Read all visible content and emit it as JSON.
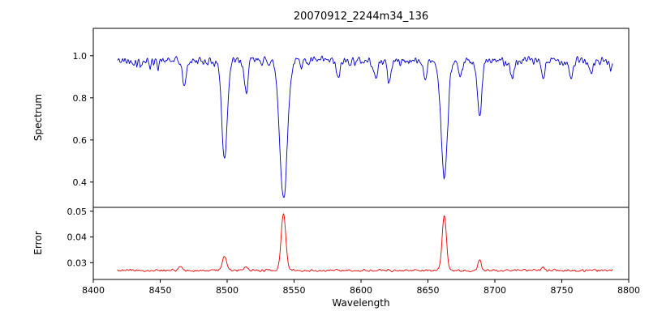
{
  "chart_data": {
    "type": "line",
    "title": "20070912_2244m34_136",
    "xlabel": "Wavelength",
    "grid": false,
    "legend": "none",
    "background": "#ffffff",
    "axis_color": "#000000",
    "xlim": [
      8400,
      8800
    ],
    "x_range": [
      8418,
      8788
    ],
    "xticks": [
      8400,
      8450,
      8500,
      8550,
      8600,
      8650,
      8700,
      8750,
      8800
    ],
    "xtick_labels": [
      "8400",
      "8450",
      "8500",
      "8550",
      "8600",
      "8650",
      "8700",
      "8750",
      "8800"
    ],
    "noise_seed": 42,
    "sample_step": 0.5,
    "panels": [
      {
        "name": "spectrum",
        "ylabel": "Spectrum",
        "color": "#0000cc",
        "ylim": [
          0.28,
          1.13
        ],
        "yticks": [
          0.4,
          0.6,
          0.8,
          1.0
        ],
        "ytick_labels": [
          "0.4",
          "0.6",
          "0.8",
          "1.0"
        ],
        "continuum": 0.975,
        "noise_amplitude": 0.028,
        "spike_probability": 0.03,
        "spike_depth": 0.06,
        "absorption_lines": [
          {
            "center": 8468.0,
            "depth": 0.12,
            "width": 1.4
          },
          {
            "center": 8498.0,
            "depth": 0.46,
            "width": 2.0
          },
          {
            "center": 8514.0,
            "depth": 0.15,
            "width": 1.4
          },
          {
            "center": 8542.1,
            "depth": 0.65,
            "width": 2.8
          },
          {
            "center": 8583.0,
            "depth": 0.09,
            "width": 1.3
          },
          {
            "center": 8611.0,
            "depth": 0.09,
            "width": 1.3
          },
          {
            "center": 8621.0,
            "depth": 0.1,
            "width": 1.3
          },
          {
            "center": 8648.0,
            "depth": 0.08,
            "width": 1.3
          },
          {
            "center": 8662.2,
            "depth": 0.55,
            "width": 2.4
          },
          {
            "center": 8674.0,
            "depth": 0.1,
            "width": 1.3
          },
          {
            "center": 8688.6,
            "depth": 0.27,
            "width": 1.6
          },
          {
            "center": 8713.0,
            "depth": 0.08,
            "width": 1.3
          },
          {
            "center": 8736.0,
            "depth": 0.08,
            "width": 1.3
          },
          {
            "center": 8757.0,
            "depth": 0.08,
            "width": 1.3
          },
          {
            "center": 8772.0,
            "depth": 0.07,
            "width": 1.3
          }
        ]
      },
      {
        "name": "error",
        "ylabel": "Error",
        "color": "#ee0000",
        "ylim": [
          0.0235,
          0.0515
        ],
        "yticks": [
          0.03,
          0.04,
          0.05
        ],
        "ytick_labels": [
          "0.03",
          "0.04",
          "0.05"
        ],
        "baseline": 0.027,
        "noise_amplitude": 0.0006,
        "peaks": [
          {
            "center": 8465.0,
            "height": 0.0015,
            "width": 1.3
          },
          {
            "center": 8498.0,
            "height": 0.0055,
            "width": 1.6
          },
          {
            "center": 8514.0,
            "height": 0.0015,
            "width": 1.3
          },
          {
            "center": 8542.1,
            "height": 0.0225,
            "width": 1.7
          },
          {
            "center": 8662.2,
            "height": 0.021,
            "width": 1.6
          },
          {
            "center": 8688.6,
            "height": 0.004,
            "width": 1.3
          },
          {
            "center": 8736.0,
            "height": 0.0012,
            "width": 1.2
          }
        ]
      }
    ]
  }
}
